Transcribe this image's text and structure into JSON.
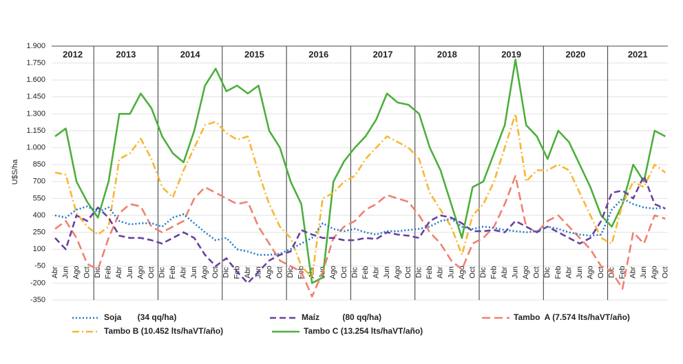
{
  "chart_data": {
    "type": "line",
    "y_label": "U$S/ha",
    "years": [
      "2012",
      "2013",
      "2014",
      "2015",
      "2016",
      "2017",
      "2018",
      "2019",
      "2020",
      "2021"
    ],
    "categories": [
      "Abr",
      "Jun",
      "Ago",
      "Oct",
      "Dic",
      "Feb",
      "Abr",
      "Jun",
      "Ago",
      "Oct",
      "Dic",
      "Feb",
      "Abr",
      "Jun",
      "Ago",
      "Oct",
      "Dic",
      "Feb",
      "Abr",
      "Jun",
      "Ago",
      "Oct",
      "Dic",
      "Feb",
      "Abr",
      "Jun",
      "Ago",
      "Oct",
      "Dic",
      "Feb",
      "Abr",
      "Jun",
      "Ago",
      "Oct",
      "Dic",
      "Feb",
      "Abr",
      "Jun",
      "Ago",
      "Oct",
      "Dic",
      "Feb",
      "Abr",
      "Jun",
      "Ago",
      "Oct",
      "Dic",
      "Feb",
      "Abr",
      "Jun",
      "Ago",
      "Oct",
      "Dic",
      "Feb",
      "Abr",
      "Jun",
      "Ago",
      "Oct"
    ],
    "ylim": [
      -350,
      1900
    ],
    "yticks": [
      {
        "value": 1900,
        "label": "1.900"
      },
      {
        "value": 1750,
        "label": "1.750"
      },
      {
        "value": 1600,
        "label": "1.600"
      },
      {
        "value": 1450,
        "label": "1.450"
      },
      {
        "value": 1300,
        "label": "1.300"
      },
      {
        "value": 1150,
        "label": "1.150"
      },
      {
        "value": 1000,
        "label": "1.000"
      },
      850,
      700,
      550,
      400,
      250,
      100,
      -50,
      -200,
      -350
    ],
    "grid": true,
    "series": [
      {
        "name": "Soja       (34 qq/ha)",
        "color": "#1f78c8",
        "dash": "2 3",
        "values": [
          400,
          380,
          450,
          480,
          430,
          470,
          350,
          320,
          330,
          330,
          300,
          380,
          410,
          330,
          250,
          180,
          200,
          100,
          80,
          50,
          50,
          60,
          100,
          150,
          200,
          330,
          280,
          260,
          280,
          250,
          230,
          260,
          260,
          270,
          280,
          300,
          350,
          370,
          300,
          280,
          300,
          290,
          270,
          260,
          250,
          260,
          300,
          280,
          250,
          230,
          220,
          230,
          450,
          550,
          500,
          470,
          460,
          470
        ]
      },
      {
        "name": "Maíz          (80 qq/ha)",
        "color": "#6a3fa0",
        "dash": "9 5",
        "values": [
          200,
          100,
          400,
          350,
          470,
          380,
          220,
          200,
          200,
          180,
          150,
          200,
          250,
          200,
          50,
          -50,
          20,
          -100,
          -200,
          -100,
          0,
          50,
          80,
          270,
          230,
          200,
          200,
          180,
          180,
          200,
          190,
          250,
          230,
          220,
          200,
          350,
          400,
          380,
          330,
          260,
          260,
          270,
          250,
          350,
          300,
          250,
          300,
          250,
          200,
          150,
          200,
          350,
          600,
          620,
          550,
          750,
          500,
          460
        ]
      },
      {
        "name": "Tambo  A (7.574 lts/haVT/año)",
        "color": "#f08070",
        "dash": "12 6",
        "values": [
          280,
          350,
          200,
          -30,
          -80,
          200,
          420,
          500,
          480,
          300,
          250,
          300,
          350,
          550,
          650,
          600,
          550,
          500,
          520,
          300,
          150,
          0,
          -50,
          -100,
          -320,
          -100,
          200,
          300,
          350,
          450,
          500,
          580,
          550,
          520,
          400,
          250,
          150,
          0,
          -80,
          150,
          200,
          300,
          500,
          750,
          300,
          250,
          350,
          400,
          300,
          200,
          100,
          -50,
          -100,
          -250,
          250,
          150,
          400,
          370
        ]
      },
      {
        "name": "Tambo B (10.452 lts/haVT/año)",
        "color": "#f7b733",
        "dash": "10 4 2 4",
        "values": [
          780,
          760,
          420,
          300,
          230,
          300,
          900,
          950,
          1080,
          900,
          650,
          560,
          800,
          1000,
          1200,
          1230,
          1130,
          1070,
          1100,
          780,
          500,
          300,
          200,
          -50,
          -150,
          550,
          600,
          700,
          750,
          900,
          1000,
          1100,
          1050,
          1000,
          900,
          600,
          450,
          300,
          50,
          400,
          500,
          700,
          1000,
          1300,
          700,
          800,
          800,
          850,
          800,
          600,
          400,
          200,
          150,
          500,
          700,
          650,
          850,
          780
        ]
      },
      {
        "name": "Tambo C (13.254 lts/haVT/año)",
        "color": "#4caf3c",
        "dash": "",
        "values": [
          1100,
          1170,
          700,
          520,
          380,
          700,
          1300,
          1300,
          1480,
          1350,
          1100,
          950,
          870,
          1150,
          1550,
          1700,
          1500,
          1550,
          1480,
          1550,
          1150,
          1000,
          700,
          500,
          -200,
          -150,
          700,
          880,
          1000,
          1100,
          1250,
          1480,
          1400,
          1380,
          1300,
          1000,
          800,
          500,
          200,
          650,
          700,
          950,
          1200,
          1780,
          1200,
          1100,
          900,
          1150,
          1050,
          850,
          650,
          400,
          300,
          500,
          850,
          700,
          1150,
          1100
        ]
      }
    ]
  }
}
